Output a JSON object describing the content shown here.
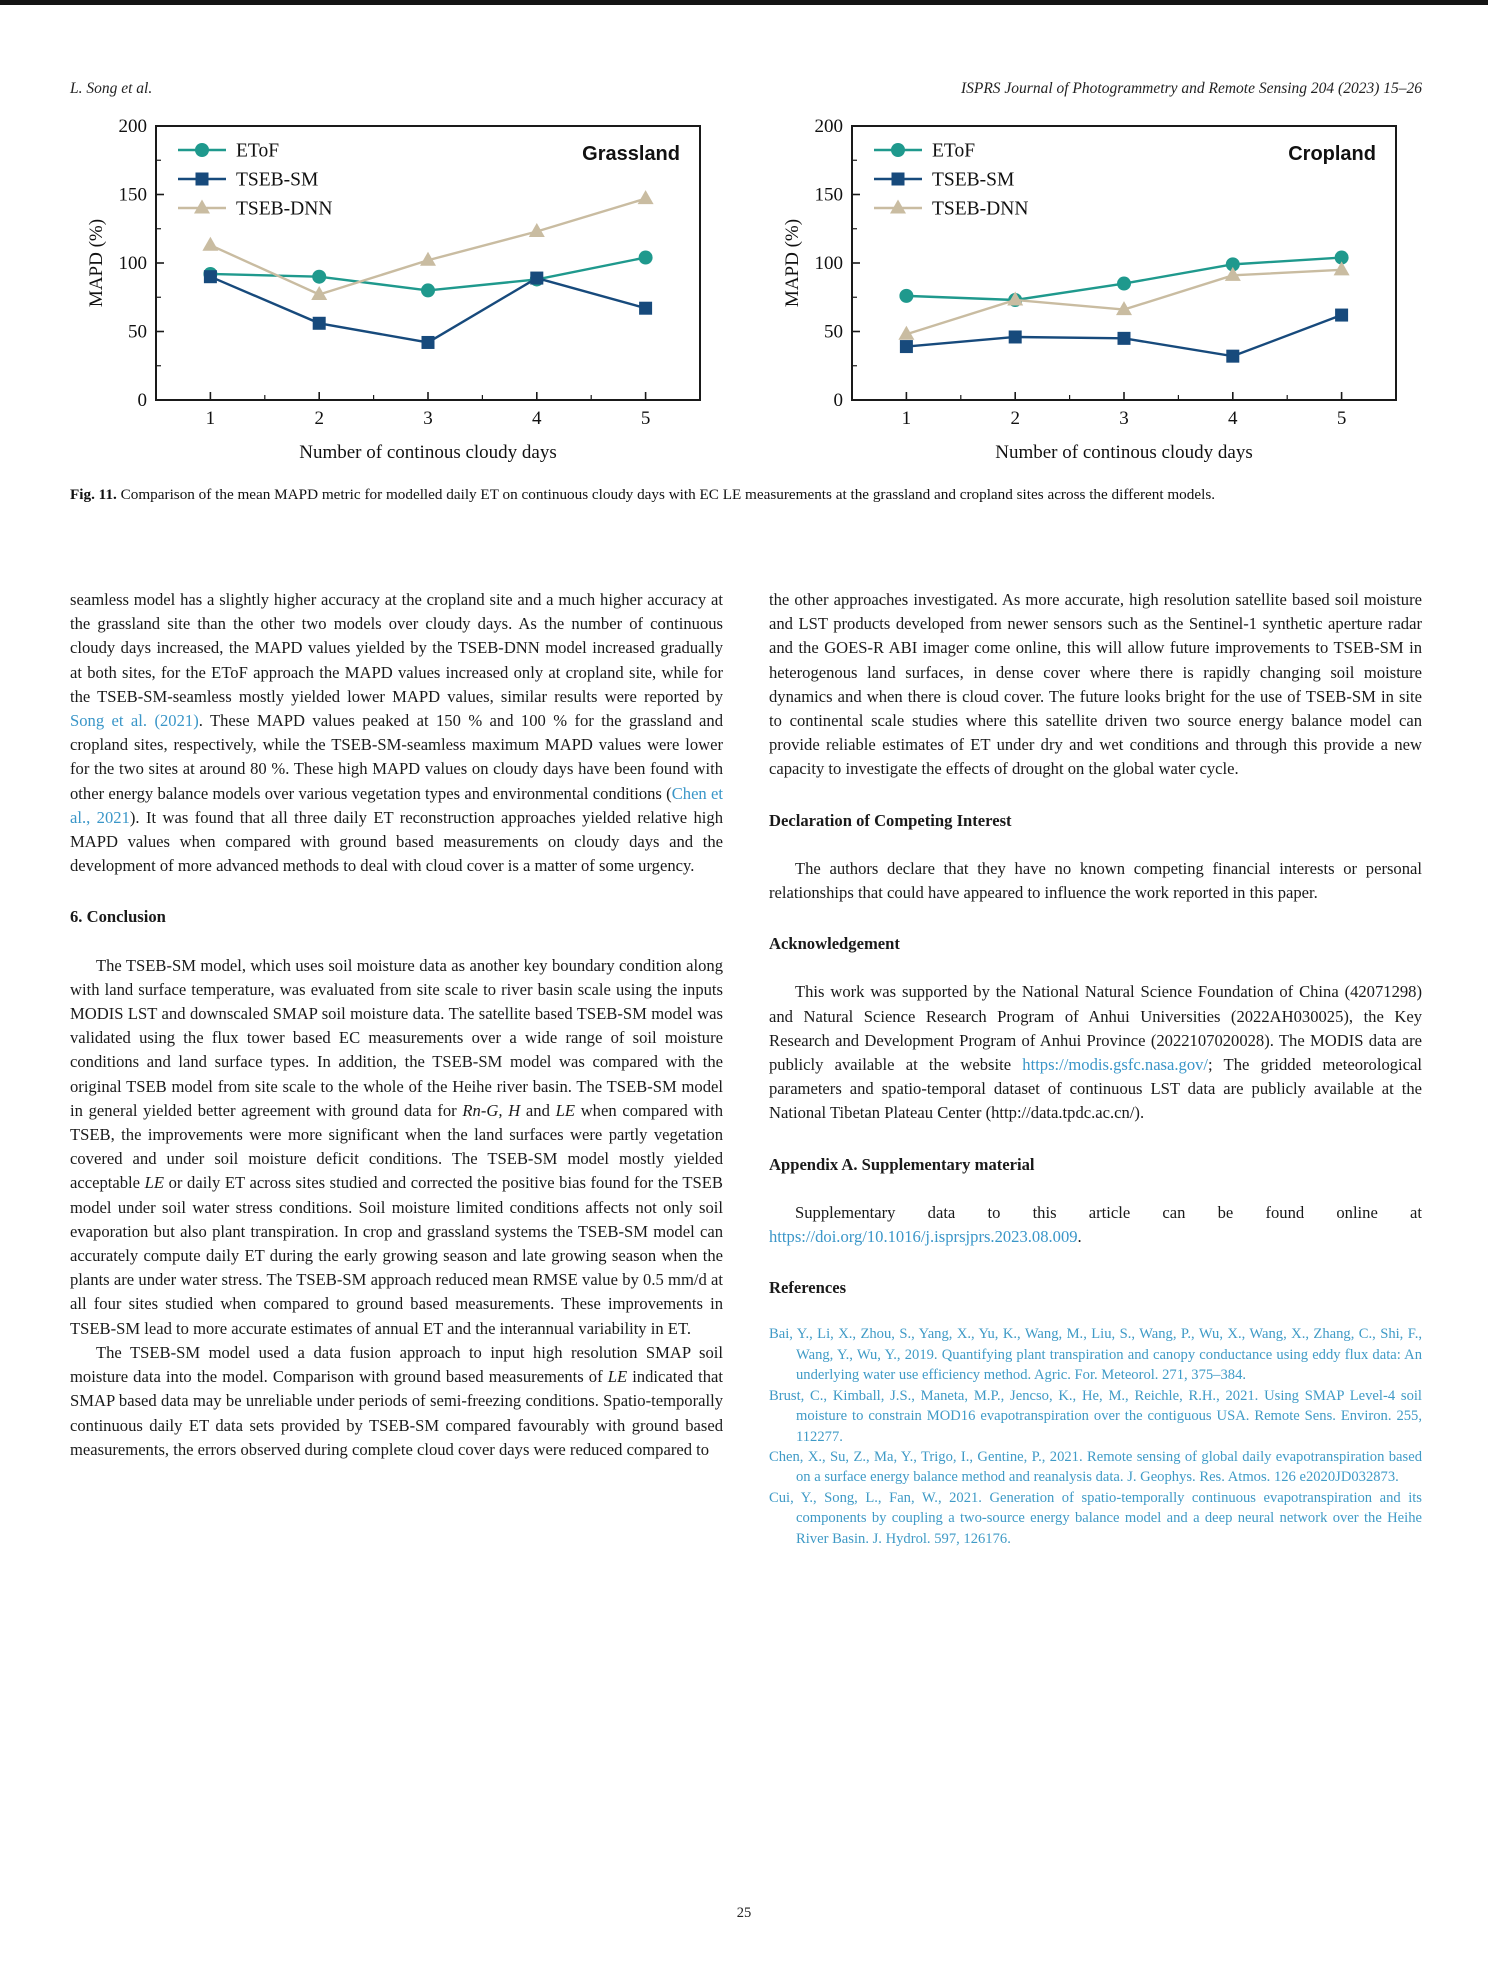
{
  "header": {
    "authors": "L. Song et al.",
    "journal": "ISPRS Journal of Photogrammetry and Remote Sensing 204 (2023) 15–26"
  },
  "figure": {
    "caption_label": "Fig. 11.",
    "caption_text": " Comparison of the mean MAPD metric for modelled daily ET on continuous cloudy days with EC LE measurements at the grassland and cropland sites across the different models."
  },
  "chart_data": [
    {
      "type": "line",
      "title": "Grassland",
      "x": [
        1,
        2,
        3,
        4,
        5
      ],
      "xlabel": "Number of continous cloudy days",
      "ylabel": "MAPD (%)",
      "ylim": [
        0,
        200
      ],
      "yticks": [
        0,
        50,
        100,
        150,
        200
      ],
      "xticks": [
        1,
        2,
        3,
        4,
        5
      ],
      "grid": false,
      "legend_position": "top-left",
      "series": [
        {
          "name": "EToF",
          "marker": "circle",
          "color": "#1f998d",
          "values": [
            92,
            90,
            80,
            88,
            104
          ]
        },
        {
          "name": "TSEB-SM",
          "marker": "square",
          "color": "#174a7c",
          "values": [
            90,
            56,
            42,
            89,
            67
          ]
        },
        {
          "name": "TSEB-DNN",
          "marker": "triangle",
          "color": "#c9bca1",
          "values": [
            113,
            77,
            102,
            123,
            147
          ]
        }
      ]
    },
    {
      "type": "line",
      "title": "Cropland",
      "x": [
        1,
        2,
        3,
        4,
        5
      ],
      "xlabel": "Number of continous cloudy days",
      "ylabel": "MAPD (%)",
      "ylim": [
        0,
        200
      ],
      "yticks": [
        0,
        50,
        100,
        150,
        200
      ],
      "xticks": [
        1,
        2,
        3,
        4,
        5
      ],
      "grid": false,
      "legend_position": "top-left",
      "series": [
        {
          "name": "EToF",
          "marker": "circle",
          "color": "#1f998d",
          "values": [
            76,
            73,
            85,
            99,
            104
          ]
        },
        {
          "name": "TSEB-SM",
          "marker": "square",
          "color": "#174a7c",
          "values": [
            39,
            46,
            45,
            32,
            62
          ]
        },
        {
          "name": "TSEB-DNN",
          "marker": "triangle",
          "color": "#c9bca1",
          "values": [
            48,
            73,
            66,
            91,
            95
          ]
        }
      ]
    }
  ],
  "left_column": {
    "blocks": [
      {
        "type": "p",
        "indent": false,
        "segments": [
          {
            "style": "plain",
            "text": "seamless model has a slightly higher accuracy at the cropland site and a much higher accuracy at the grassland site than the other two models over cloudy days. As the number of continuous cloudy days increased, the MAPD values yielded by the TSEB-DNN model increased gradually at both sites, for the EToF approach the MAPD values increased only at cropland site, while for the TSEB-SM-seamless mostly yielded lower MAPD values, similar results were reported by "
          },
          {
            "style": "link",
            "text": "Song et al. (2021)"
          },
          {
            "style": "plain",
            "text": ". These MAPD values peaked at 150 % and 100 % for the grassland and cropland sites, respectively, while the TSEB-SM-seamless maximum MAPD values were lower for the two sites at around 80 %. These high MAPD values on cloudy days have been found with other energy balance models over various vegetation types and environmental conditions ("
          },
          {
            "style": "link",
            "text": "Chen et al., 2021"
          },
          {
            "style": "plain",
            "text": "). It was found that all three daily ET reconstruction approaches yielded relative high MAPD values when compared with ground based measurements on cloudy days and the development of more advanced methods to deal with cloud cover is a matter of some urgency."
          }
        ]
      },
      {
        "type": "h2",
        "text": "6. Conclusion"
      },
      {
        "type": "p",
        "indent": true,
        "segments": [
          {
            "style": "plain",
            "text": "The TSEB-SM model, which uses soil moisture data as another key boundary condition along with land surface temperature, was evaluated from site scale to river basin scale using the inputs MODIS LST and downscaled SMAP soil moisture data. The satellite based TSEB-SM model was validated using the flux tower based EC measurements over a wide range of soil moisture conditions and land surface types. In addition, the TSEB-SM model was compared with the original TSEB model from site scale to the whole of the Heihe river basin. The TSEB-SM model in general yielded better agreement with ground data for "
          },
          {
            "style": "italic",
            "text": "Rn-G, H"
          },
          {
            "style": "plain",
            "text": " and "
          },
          {
            "style": "italic",
            "text": "LE"
          },
          {
            "style": "plain",
            "text": " when compared with TSEB, the improvements were more significant when the land surfaces were partly vegetation covered and under soil moisture deficit conditions. The TSEB-SM model mostly yielded acceptable "
          },
          {
            "style": "italic",
            "text": "LE"
          },
          {
            "style": "plain",
            "text": " or daily ET across sites studied and corrected the positive bias found for the TSEB model under soil water stress conditions. Soil moisture limited conditions affects not only soil evaporation but also plant transpiration. In crop and grassland systems the TSEB-SM model can accurately compute daily ET during the early growing season and late growing season when the plants are under water stress. The TSEB-SM approach reduced mean RMSE value by 0.5 mm/d at all four sites studied when compared to ground based measurements. These improvements in TSEB-SM lead to more accurate estimates of annual ET and the interannual variability in ET."
          }
        ]
      },
      {
        "type": "p",
        "indent": true,
        "segments": [
          {
            "style": "plain",
            "text": "The TSEB-SM model used a data fusion approach to input high resolution SMAP soil moisture data into the model. Comparison with ground based measurements of "
          },
          {
            "style": "italic",
            "text": "LE"
          },
          {
            "style": "plain",
            "text": " indicated that SMAP based data may be unreliable under periods of semi-freezing conditions. Spatio-temporally continuous daily ET data sets provided by TSEB-SM compared favourably with ground based measurements, the errors observed during complete cloud cover days were reduced compared to"
          }
        ]
      }
    ]
  },
  "right_column": {
    "blocks": [
      {
        "type": "p",
        "indent": false,
        "segments": [
          {
            "style": "plain",
            "text": "the other approaches investigated. As more accurate, high resolution satellite based soil moisture and LST products developed from newer sensors such as the Sentinel-1 synthetic aperture radar and the GOES-R ABI imager come online, this will allow future improvements to TSEB-SM in heterogenous land surfaces, in dense cover where there is rapidly changing soil moisture dynamics and when there is cloud cover. The future looks bright for the use of TSEB-SM in site to continental scale studies where this satellite driven two source energy balance model can provide reliable estimates of ET under dry and wet conditions and through this provide a new capacity to investigate the effects of drought on the global water cycle."
          }
        ]
      },
      {
        "type": "h2",
        "text": "Declaration of Competing Interest"
      },
      {
        "type": "p",
        "indent": true,
        "segments": [
          {
            "style": "plain",
            "text": "The authors declare that they have no known competing financial interests or personal relationships that could have appeared to influence the work reported in this paper."
          }
        ]
      },
      {
        "type": "h2",
        "text": "Acknowledgement"
      },
      {
        "type": "p",
        "indent": true,
        "segments": [
          {
            "style": "plain",
            "text": "This work was supported by the National Natural Science Foundation of China (42071298) and Natural Science Research Program of Anhui Universities (2022AH030025), the Key Research and Development Program of Anhui Province (2022107020028). The MODIS data are publicly available at the website "
          },
          {
            "style": "link",
            "text": "https://modis.gsfc.nasa.gov/"
          },
          {
            "style": "plain",
            "text": "; The gridded meteorological parameters and spatio-temporal dataset of continuous LST data are publicly available at the National Tibetan Plateau Center (http://data.tpdc.ac.cn/)."
          }
        ]
      },
      {
        "type": "h2",
        "text": "Appendix A.  Supplementary material"
      },
      {
        "type": "p",
        "indent": true,
        "segments": [
          {
            "style": "plain",
            "text": "Supplementary data to this article can be found online at "
          },
          {
            "style": "link",
            "text": "https://doi.org/10.1016/j.isprsjprs.2023.08.009"
          },
          {
            "style": "plain",
            "text": "."
          }
        ]
      },
      {
        "type": "h2",
        "text": "References"
      },
      {
        "type": "ref",
        "text": "Bai, Y., Li, X., Zhou, S., Yang, X., Yu, K., Wang, M., Liu, S., Wang, P., Wu, X., Wang, X., Zhang, C., Shi, F., Wang, Y., Wu, Y., 2019. Quantifying plant transpiration and canopy conductance using eddy flux data: An underlying water use efficiency method. Agric. For. Meteorol. 271, 375–384."
      },
      {
        "type": "ref",
        "text": "Brust, C., Kimball, J.S., Maneta, M.P., Jencso, K., He, M., Reichle, R.H., 2021. Using SMAP Level-4 soil moisture to constrain MOD16 evapotranspiration over the contiguous USA. Remote Sens. Environ. 255, 112277."
      },
      {
        "type": "ref",
        "text": "Chen, X., Su, Z., Ma, Y., Trigo, I., Gentine, P., 2021. Remote sensing of global daily evapotranspiration based on a surface energy balance method and reanalysis data. J. Geophys. Res. Atmos. 126 e2020JD032873."
      },
      {
        "type": "ref",
        "text": "Cui, Y., Song, L., Fan, W., 2021. Generation of spatio-temporally continuous evapotranspiration and its components by coupling a two-source energy balance model and a deep neural network over the Heihe River Basin. J. Hydrol. 597, 126176."
      }
    ]
  },
  "page": {
    "number": "25"
  }
}
